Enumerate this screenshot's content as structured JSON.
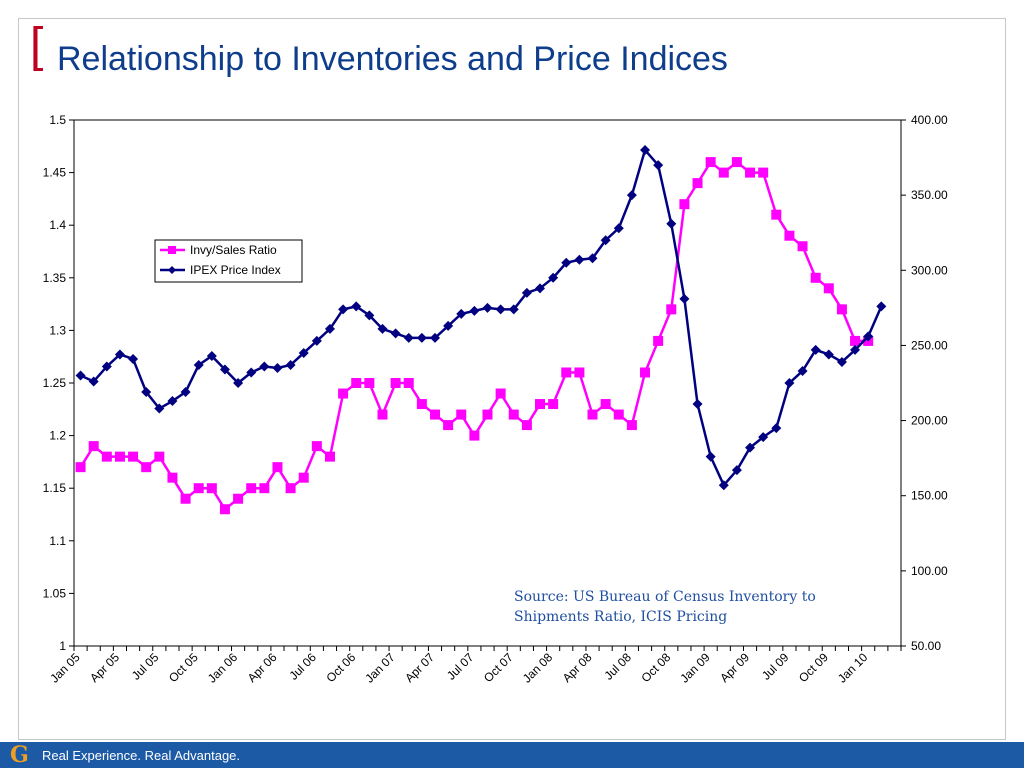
{
  "title": "Relationship to Inventories and Price Indices",
  "title_bracket": "[",
  "source_text": "Source:  US Bureau of Census Inventory to Shipments Ratio, ICIS Pricing",
  "footer": {
    "logo_letter": "G",
    "tagline": "Real Experience. Real Advantage."
  },
  "colors": {
    "ratio": "#ff00ff",
    "ipex": "#000080",
    "title": "#0e3d8c",
    "bracket": "#c00020",
    "footer_bg": "#1c5aa6",
    "source": "#1f4fa0"
  },
  "chart_data": {
    "type": "line",
    "x_tick_labels": [
      "Jan 05",
      "Apr 05",
      "Jul 05",
      "Oct 05",
      "Jan 06",
      "Apr 06",
      "Jul 06",
      "Oct 06",
      "Jan 07",
      "Apr 07",
      "Jul 07",
      "Oct 07",
      "Jan 08",
      "Apr 08",
      "Jul 08",
      "Oct 08",
      "Jan 09",
      "Apr 09",
      "Jul 09",
      "Oct 09",
      "Jan 10"
    ],
    "y_left": {
      "range": [
        1,
        1.5
      ],
      "ticks": [
        "1",
        "1.05",
        "1.1",
        "1.15",
        "1.2",
        "1.25",
        "1.3",
        "1.35",
        "1.4",
        "1.45",
        "1.5"
      ]
    },
    "y_right": {
      "range": [
        50,
        400
      ],
      "ticks": [
        "50.00",
        "100.00",
        "150.00",
        "200.00",
        "250.00",
        "300.00",
        "350.00",
        "400.00"
      ]
    },
    "legend_placement": "upper-left inside plot",
    "grid": false,
    "series": [
      {
        "name": "Invy/Sales Ratio",
        "axis": "left",
        "marker": "square",
        "values": [
          1.17,
          1.19,
          1.18,
          1.18,
          1.18,
          1.17,
          1.18,
          1.16,
          1.14,
          1.15,
          1.15,
          1.13,
          1.14,
          1.15,
          1.15,
          1.17,
          1.15,
          1.16,
          1.19,
          1.18,
          1.24,
          1.25,
          1.25,
          1.22,
          1.25,
          1.25,
          1.23,
          1.22,
          1.21,
          1.22,
          1.2,
          1.22,
          1.24,
          1.22,
          1.21,
          1.23,
          1.23,
          1.26,
          1.26,
          1.22,
          1.23,
          1.22,
          1.21,
          1.26,
          1.29,
          1.32,
          1.42,
          1.44,
          1.46,
          1.45,
          1.46,
          1.45,
          1.45,
          1.41,
          1.39,
          1.38,
          1.35,
          1.34,
          1.32,
          1.29,
          1.29
        ]
      },
      {
        "name": "IPEX Price Index",
        "axis": "right",
        "marker": "diamond",
        "values": [
          230,
          226,
          236,
          244,
          241,
          219,
          208,
          213,
          219,
          237,
          243,
          234,
          225,
          232,
          236,
          235,
          237,
          245,
          253,
          261,
          274,
          276,
          270,
          261,
          258,
          255,
          255,
          255,
          263,
          271,
          273,
          275,
          274,
          274,
          285,
          288,
          295,
          305,
          307,
          308,
          320,
          328,
          350,
          380,
          370,
          331,
          281,
          211,
          176,
          157,
          167,
          182,
          189,
          195,
          225,
          233,
          247,
          244,
          239,
          247,
          256,
          276
        ]
      }
    ]
  }
}
